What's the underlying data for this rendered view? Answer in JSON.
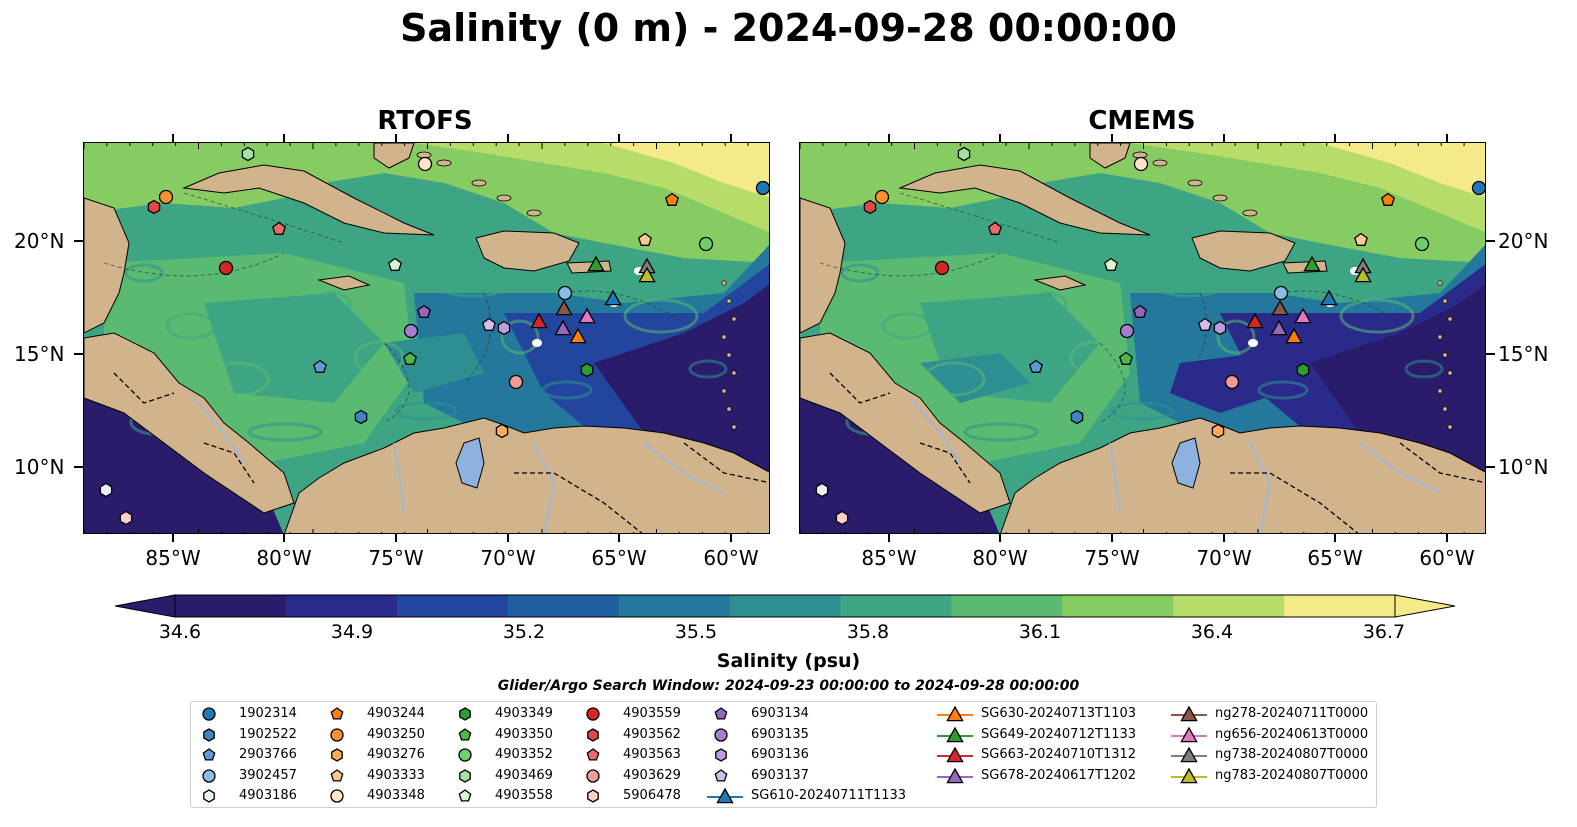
{
  "title": "Salinity (0 m) - 2024-09-28 00:00:00",
  "panels": [
    {
      "title": "RTOFS"
    },
    {
      "title": "CMEMS"
    }
  ],
  "axes": {
    "x_labels": [
      "85°W",
      "80°W",
      "75°W",
      "70°W",
      "65°W",
      "60°W"
    ],
    "y_labels": [
      "20°N",
      "15°N",
      "10°N"
    ]
  },
  "colorbar": {
    "label": "Salinity (psu)",
    "ticks": [
      "34.6",
      "34.9",
      "35.2",
      "35.5",
      "35.8",
      "36.1",
      "36.4",
      "36.7"
    ],
    "colors": [
      "#2a1b6b",
      "#2a2a8a",
      "#22459e",
      "#1f5fa0",
      "#23789b",
      "#2e8f92",
      "#3ea584",
      "#5aba72",
      "#86cc62",
      "#b8dc6a",
      "#f4ea8a"
    ]
  },
  "search_window": "Glider/Argo Search Window: 2024-09-23 00:00:00 to 2024-09-28 00:00:00",
  "legend": {
    "argo": [
      {
        "id": "1902314",
        "marker": "circle",
        "color": "#1f77b4"
      },
      {
        "id": "1902522",
        "marker": "hexagon",
        "color": "#3c86c4"
      },
      {
        "id": "2903766",
        "marker": "pentagon",
        "color": "#5a9bd5"
      },
      {
        "id": "3902457",
        "marker": "circle",
        "color": "#89bde6"
      },
      {
        "id": "4903186",
        "marker": "hexagon",
        "color": "#e8f2fb"
      },
      {
        "id": "4903244",
        "marker": "pentagon",
        "color": "#ff7f0e"
      },
      {
        "id": "4903250",
        "marker": "circle",
        "color": "#ff922e"
      },
      {
        "id": "4903276",
        "marker": "hexagon",
        "color": "#ffab5c"
      },
      {
        "id": "4903333",
        "marker": "pentagon",
        "color": "#ffc891"
      },
      {
        "id": "4903348",
        "marker": "circle",
        "color": "#ffe4c8"
      },
      {
        "id": "4903349",
        "marker": "hexagon",
        "color": "#2ca02c"
      },
      {
        "id": "4903350",
        "marker": "pentagon",
        "color": "#4cb84c"
      },
      {
        "id": "4903352",
        "marker": "circle",
        "color": "#6fcf6f"
      },
      {
        "id": "4903469",
        "marker": "hexagon",
        "color": "#a3e4a3"
      },
      {
        "id": "4903558",
        "marker": "pentagon",
        "color": "#d8f5d3"
      },
      {
        "id": "4903559",
        "marker": "circle",
        "color": "#d62728"
      },
      {
        "id": "4903562",
        "marker": "hexagon",
        "color": "#e04848"
      },
      {
        "id": "4903563",
        "marker": "pentagon",
        "color": "#ea6a6a"
      },
      {
        "id": "4903629",
        "marker": "circle",
        "color": "#f29a94"
      },
      {
        "id": "5906478",
        "marker": "hexagon",
        "color": "#fbd0cb"
      },
      {
        "id": "6903134",
        "marker": "pentagon",
        "color": "#9467bd"
      },
      {
        "id": "6903135",
        "marker": "circle",
        "color": "#a27fcf"
      },
      {
        "id": "6903136",
        "marker": "hexagon",
        "color": "#bb9de0"
      },
      {
        "id": "6903137",
        "marker": "pentagon",
        "color": "#d3bdef"
      }
    ],
    "gliders": [
      {
        "id": "SG610-20240711T1133",
        "color": "#1f77b4"
      },
      {
        "id": "SG630-20240713T1103",
        "color": "#ff7f0e"
      },
      {
        "id": "SG649-20240712T1133",
        "color": "#2ca02c"
      },
      {
        "id": "SG663-20240710T1312",
        "color": "#d62728"
      },
      {
        "id": "SG678-20240617T1202",
        "color": "#9467bd"
      },
      {
        "id": "ng278-20240711T0000",
        "color": "#8c564b"
      },
      {
        "id": "ng656-20240613T0000",
        "color": "#e377c2"
      },
      {
        "id": "ng738-20240807T0000",
        "color": "#7f7f7f"
      },
      {
        "id": "ng783-20240807T0000",
        "color": "#bcbd22"
      }
    ]
  }
}
